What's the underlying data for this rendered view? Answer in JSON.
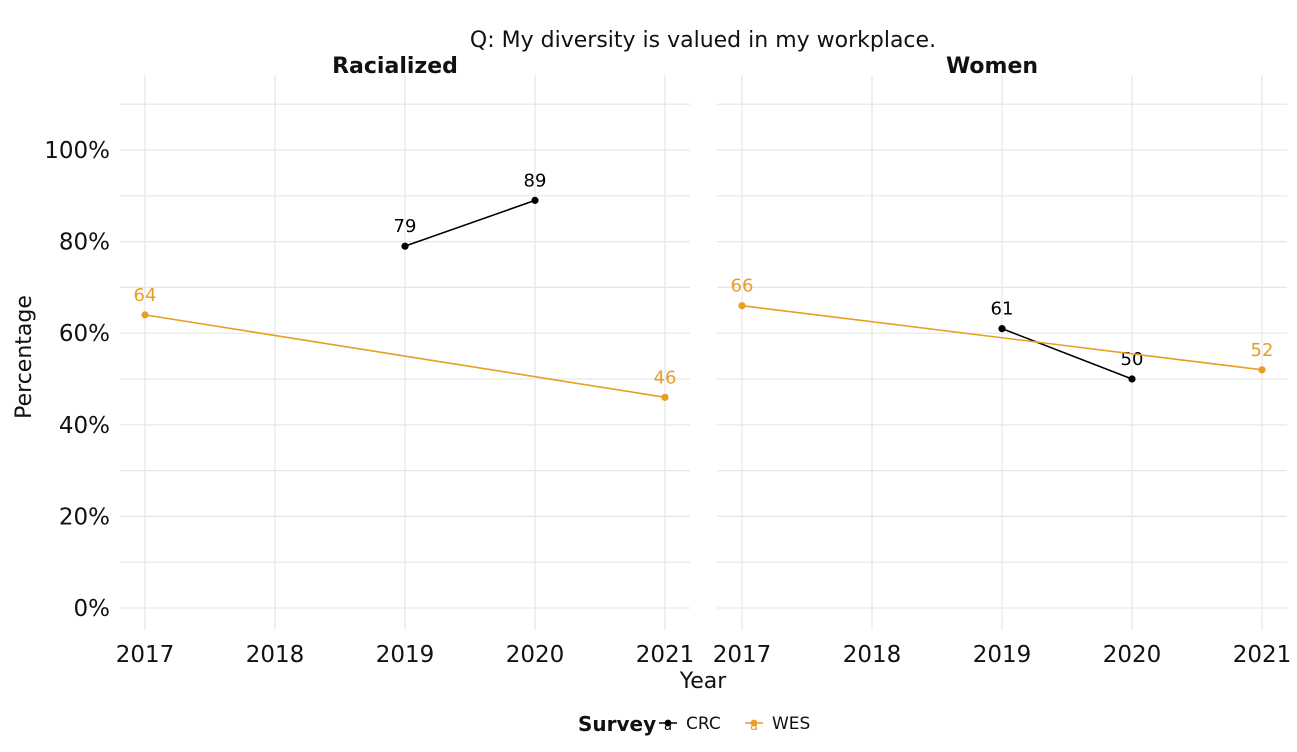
{
  "chart_data": {
    "type": "line",
    "title": "Q: My diversity is valued in my workplace.",
    "xlabel": "Year",
    "ylabel": "Percentage",
    "x_ticks": [
      "2017",
      "2018",
      "2019",
      "2020",
      "2021"
    ],
    "xlim": [
      2017,
      2021
    ],
    "y_ticks": [
      "0%",
      "20%",
      "40%",
      "60%",
      "80%",
      "100%"
    ],
    "ylim": [
      0,
      100
    ],
    "grid": true,
    "legend": {
      "title": "Survey",
      "placement": "bottom",
      "entries": [
        {
          "name": "CRC",
          "color": "#000000",
          "key_glyph": "a"
        },
        {
          "name": "WES",
          "color": "#E69F24",
          "key_glyph": "a"
        }
      ]
    },
    "panels": [
      {
        "title": "Racialized",
        "series": [
          {
            "name": "CRC",
            "color": "#000000",
            "points": [
              {
                "x": 2019,
                "y": 79,
                "label": "79"
              },
              {
                "x": 2020,
                "y": 89,
                "label": "89"
              }
            ]
          },
          {
            "name": "WES",
            "color": "#E69F24",
            "points": [
              {
                "x": 2017,
                "y": 64,
                "label": "64"
              },
              {
                "x": 2021,
                "y": 46,
                "label": "46"
              }
            ]
          }
        ]
      },
      {
        "title": "Women",
        "series": [
          {
            "name": "CRC",
            "color": "#000000",
            "points": [
              {
                "x": 2019,
                "y": 61,
                "label": "61"
              },
              {
                "x": 2020,
                "y": 50,
                "label": "50"
              }
            ]
          },
          {
            "name": "WES",
            "color": "#E69F24",
            "points": [
              {
                "x": 2017,
                "y": 66,
                "label": "66"
              },
              {
                "x": 2021,
                "y": 52,
                "label": "52"
              }
            ]
          }
        ]
      }
    ]
  }
}
